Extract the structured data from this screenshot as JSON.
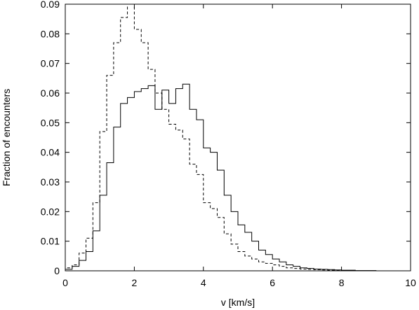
{
  "chart_data": {
    "type": "line",
    "subtype": "step-histogram",
    "title": "",
    "xlabel": "v [km/s]",
    "ylabel": "Fraction of encounters",
    "xlim": [
      0,
      10
    ],
    "ylim": [
      0,
      0.09
    ],
    "xticks": [
      "0",
      "2",
      "4",
      "6",
      "8",
      "10"
    ],
    "yticks": [
      "0",
      "0.01",
      "0.02",
      "0.03",
      "0.04",
      "0.05",
      "0.06",
      "0.07",
      "0.08",
      "0.09"
    ],
    "grid": false,
    "legend": false,
    "bin_width": 0.2,
    "series": [
      {
        "line_style": "solid",
        "color": "#000000",
        "x": [
          0.0,
          0.2,
          0.4,
          0.6,
          0.8,
          1.0,
          1.2,
          1.4,
          1.6,
          1.8,
          2.0,
          2.2,
          2.4,
          2.6,
          2.8,
          3.0,
          3.2,
          3.4,
          3.6,
          3.8,
          4.0,
          4.2,
          4.4,
          4.6,
          4.8,
          5.0,
          5.2,
          5.4,
          5.6,
          5.8,
          6.0,
          6.2,
          6.4,
          6.6,
          6.8,
          7.0,
          7.2,
          7.4,
          7.6,
          7.8,
          8.0,
          8.2,
          8.4,
          8.6,
          8.8,
          9.0,
          9.2,
          9.4,
          9.6,
          9.8
        ],
        "values": [
          0.0005,
          0.0015,
          0.0035,
          0.0065,
          0.0135,
          0.0255,
          0.0365,
          0.0485,
          0.0565,
          0.0585,
          0.0605,
          0.0615,
          0.0625,
          0.0545,
          0.061,
          0.0565,
          0.0615,
          0.063,
          0.0545,
          0.051,
          0.0415,
          0.04,
          0.034,
          0.0255,
          0.02,
          0.0155,
          0.013,
          0.01,
          0.007,
          0.0055,
          0.004,
          0.003,
          0.002,
          0.0015,
          0.001,
          0.0008,
          0.0006,
          0.0005,
          0.0004,
          0.0003,
          0.0002,
          0.0002,
          0.0001,
          0.0001,
          0.0001,
          0.0,
          0.0,
          0.0,
          0.0,
          0.0
        ]
      },
      {
        "line_style": "dashed",
        "color": "#000000",
        "x": [
          0.0,
          0.2,
          0.4,
          0.6,
          0.8,
          1.0,
          1.2,
          1.4,
          1.6,
          1.8,
          2.0,
          2.2,
          2.4,
          2.6,
          2.8,
          3.0,
          3.2,
          3.4,
          3.6,
          3.8,
          4.0,
          4.2,
          4.4,
          4.6,
          4.8,
          5.0,
          5.2,
          5.4,
          5.6,
          5.8,
          6.0,
          6.2,
          6.4,
          6.6,
          6.8,
          7.0,
          7.2,
          7.4,
          7.6,
          7.8,
          8.0,
          8.2,
          8.4,
          8.6,
          8.8,
          9.0,
          9.2,
          9.4,
          9.6,
          9.8
        ],
        "values": [
          0.001,
          0.002,
          0.006,
          0.011,
          0.023,
          0.047,
          0.066,
          0.077,
          0.0855,
          0.09,
          0.0815,
          0.077,
          0.068,
          0.06,
          0.0545,
          0.0495,
          0.0475,
          0.0445,
          0.036,
          0.0325,
          0.023,
          0.021,
          0.018,
          0.0125,
          0.009,
          0.0065,
          0.005,
          0.004,
          0.003,
          0.0025,
          0.002,
          0.0015,
          0.001,
          0.0008,
          0.0006,
          0.0005,
          0.0004,
          0.0003,
          0.0002,
          0.0002,
          0.0001,
          0.0001,
          0.0,
          0.0,
          0.0,
          0.0,
          0.0,
          0.0,
          0.0,
          0.0
        ]
      }
    ]
  }
}
